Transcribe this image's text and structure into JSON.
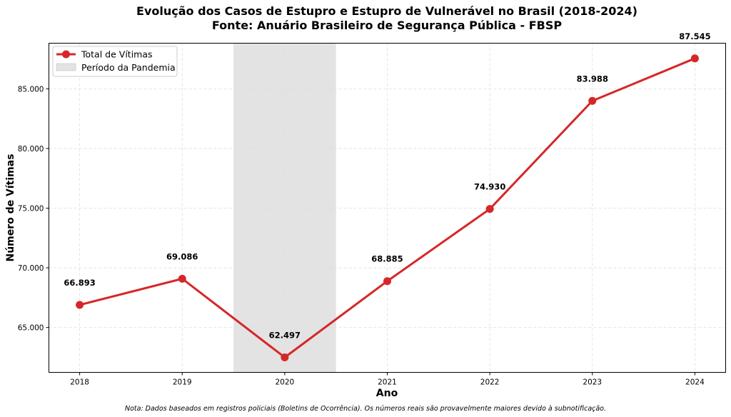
{
  "chart_data": {
    "type": "line",
    "title": "Evolução dos Casos de Estupro e Estupro de Vulnerável no Brasil (2018-2024)",
    "subtitle": "Fonte: Anuário Brasileiro de Segurança Pública - FBSP",
    "xlabel": "Ano",
    "ylabel": "Número de Vítimas",
    "x": [
      2018,
      2019,
      2020,
      2021,
      2022,
      2023,
      2024
    ],
    "x_tick_labels": [
      "2018",
      "2019",
      "2020",
      "2021",
      "2022",
      "2023",
      "2024"
    ],
    "series": [
      {
        "name": "Total de Vítimas",
        "values": [
          66893,
          69086,
          62497,
          68885,
          74930,
          83988,
          87545
        ],
        "data_labels": [
          "66.893",
          "69.086",
          "62.497",
          "68.885",
          "74.930",
          "83.988",
          "87.545"
        ],
        "color": "#d62728"
      }
    ],
    "shaded_region": {
      "name": "Período da Pandemia",
      "x_range": [
        2019.5,
        2020.5
      ],
      "color": "#cccccc"
    },
    "y_ticks": [
      65000,
      70000,
      75000,
      80000,
      85000
    ],
    "y_tick_labels": [
      "65.000",
      "70.000",
      "75.000",
      "80.000",
      "85.000"
    ],
    "xlim": [
      2017.7,
      2024.3
    ],
    "ylim": [
      61240,
      88820
    ],
    "grid": true,
    "legend_position": "top-left",
    "note": "Nota: Dados baseados em registros policiais (Boletins de Ocorrência). Os números reais são provavelmente maiores devido à subnotificação."
  }
}
